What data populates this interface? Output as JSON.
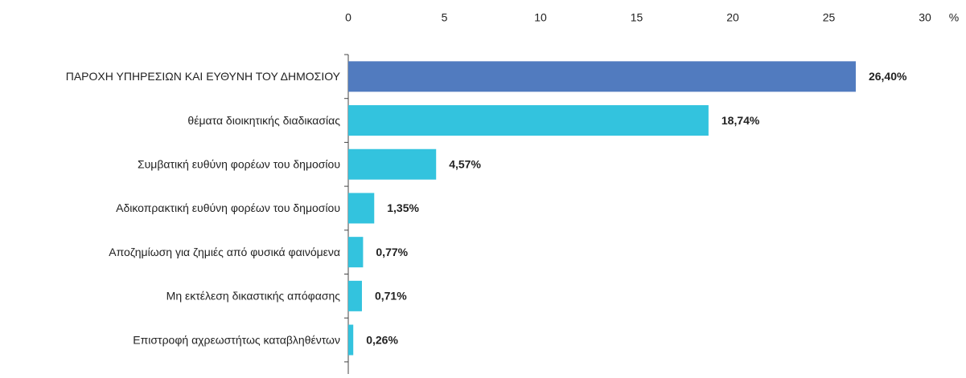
{
  "chart_data": {
    "type": "hbar",
    "categories": [
      "ΠΑΡΟΧΗ ΥΠΗΡΕΣΙΩΝ ΚΑΙ ΕΥΘΥΝΗ ΤΟΥ ΔΗΜΟΣΙΟΥ",
      "θέματα διοικητικής διαδικασίας",
      "Συμβατική ευθύνη φορέων του δημοσίου",
      "Αδικοπρακτική ευθύνη φορέων του δημοσίου",
      "Αποζημίωση για ζημιές από φυσικά φαινόμενα",
      "Μη εκτέλεση δικαστικής απόφασης",
      "Επιστροφή αχρεωστήτως καταβληθέντων"
    ],
    "values": [
      26.4,
      18.74,
      4.57,
      1.35,
      0.77,
      0.71,
      0.26
    ],
    "value_labels": [
      "26,40%",
      "18,74%",
      "4,57%",
      "1,35%",
      "0,77%",
      "0,71%",
      "0,26%"
    ],
    "colors": [
      "#517bbf",
      "#33c3de",
      "#33c3de",
      "#33c3de",
      "#33c3de",
      "#33c3de",
      "#33c3de"
    ],
    "xlabel": "%",
    "xlim": [
      0,
      30
    ],
    "xticks": [
      0,
      5,
      10,
      15,
      20,
      25,
      30
    ]
  }
}
